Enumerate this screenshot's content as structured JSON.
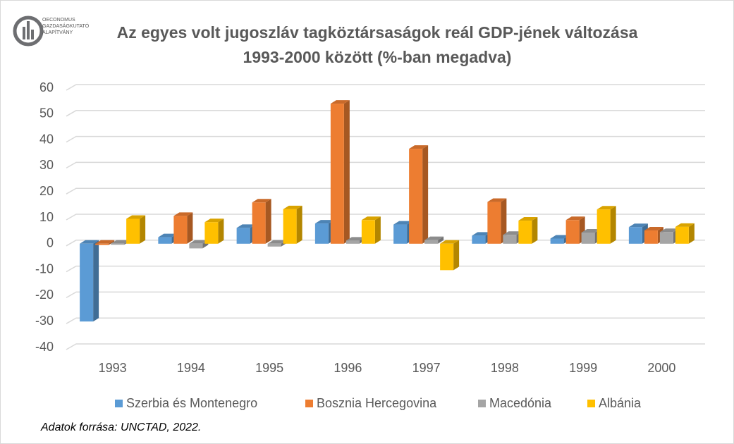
{
  "logo": [
    "OECONOMUS",
    "GAZDASÁGKUTATÓ",
    "ALAPÍTVÁNY"
  ],
  "chart_data": {
    "type": "bar",
    "title": [
      "Az egyes volt jugoszláv tagköztársaságok reál GDP-jének változása",
      "1993-2000 között (%-ban megadva)"
    ],
    "categories": [
      "1993",
      "1994",
      "1995",
      "1996",
      "1997",
      "1998",
      "1999",
      "2000"
    ],
    "series": [
      {
        "name": "Szerbia és Montenegro",
        "color": "#5b9bd5",
        "values": [
          -30,
          2.5,
          6.1,
          7.8,
          7.4,
          3.1,
          2,
          6.4
        ]
      },
      {
        "name": "Bosznia Hercegovina",
        "color": "#ed7d31",
        "values": [
          -0.5,
          10.7,
          15.9,
          54,
          36.6,
          16.1,
          9.1,
          5.1
        ]
      },
      {
        "name": "Macedónia",
        "color": "#a5a5a5",
        "values": [
          -0.4,
          -1.8,
          -1.1,
          1.2,
          1.4,
          3.4,
          4.3,
          4.5
        ]
      },
      {
        "name": "Albánia",
        "color": "#ffc000",
        "values": [
          9.6,
          8.3,
          13.3,
          9.1,
          -10.2,
          8.9,
          13.2,
          6.5
        ]
      }
    ],
    "ylim": [
      -40,
      60
    ],
    "yticks": [
      -40,
      -30,
      -20,
      -10,
      0,
      10,
      20,
      30,
      40,
      50,
      60
    ],
    "grid": true,
    "legend": "bottom",
    "source": "Adatok forrása: UNCTAD, 2022."
  }
}
